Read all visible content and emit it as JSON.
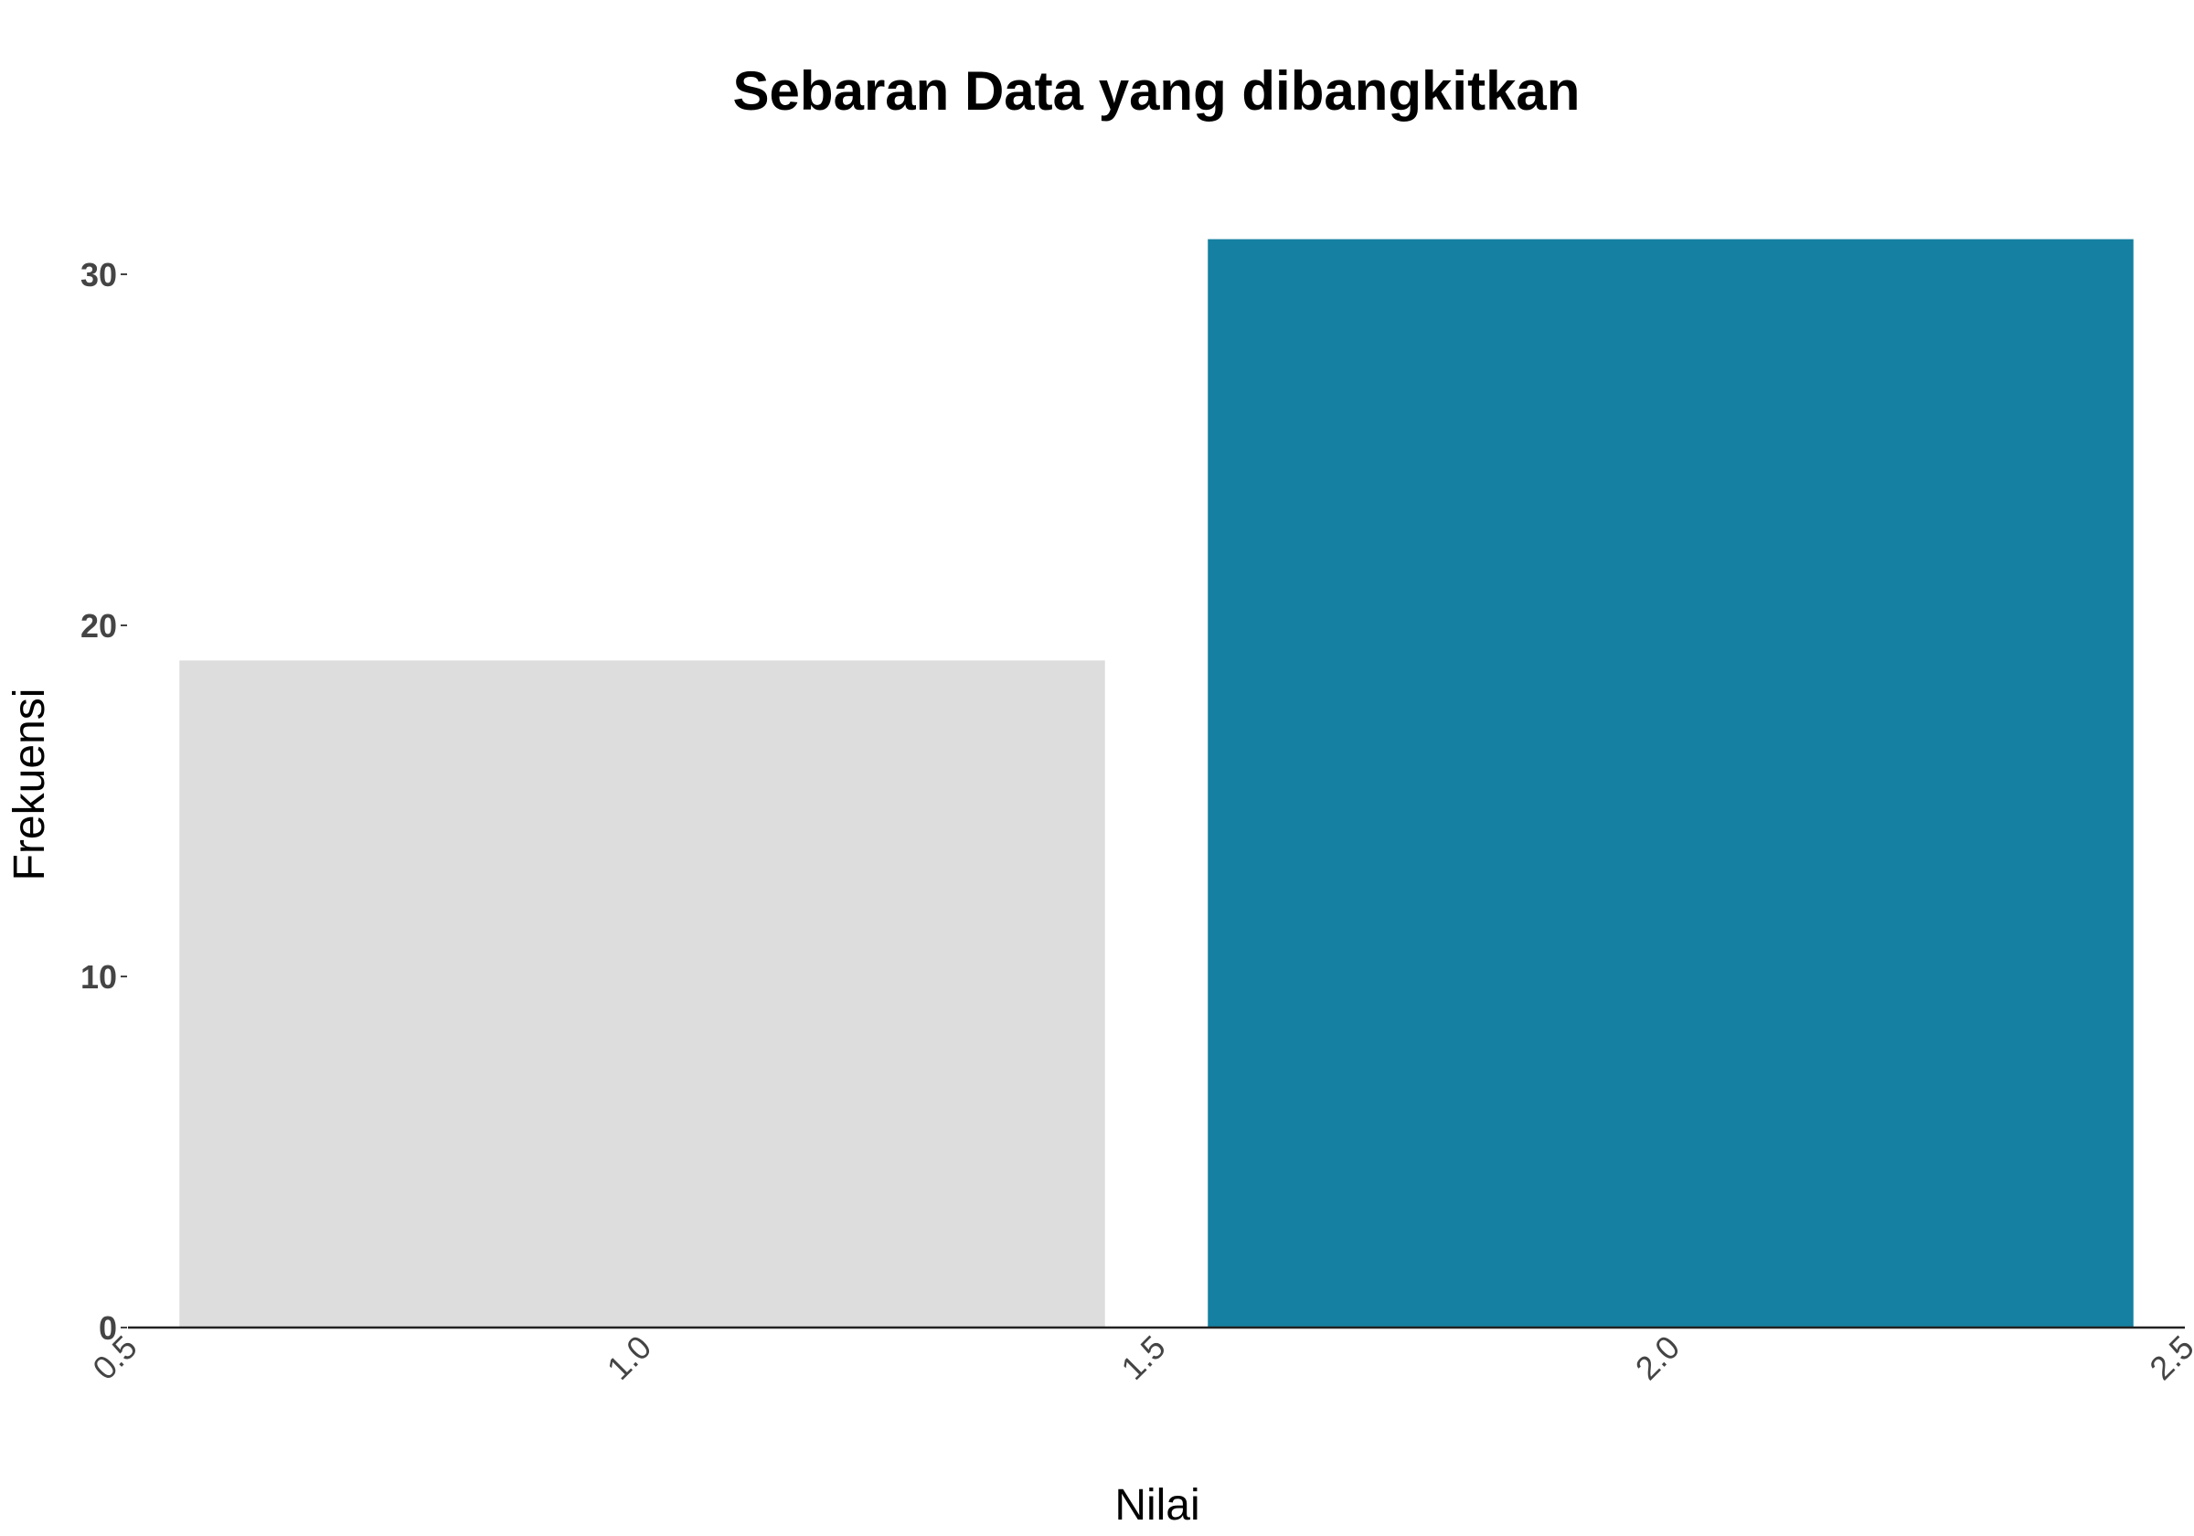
{
  "chart_data": {
    "type": "bar",
    "title": "Sebaran Data yang dibangkitkan",
    "xlabel": "Nilai",
    "ylabel": "Frekuensi",
    "bins": [
      {
        "x_start": 0.55,
        "x_end": 1.45,
        "value": 19,
        "color": "#DDDDDD"
      },
      {
        "x_start": 1.55,
        "x_end": 2.45,
        "value": 31,
        "color": "#1580A1"
      }
    ],
    "xlim": [
      0.5,
      2.5
    ],
    "ylim": [
      0,
      32
    ],
    "x_ticks": [
      "0.5",
      "1.0",
      "1.5",
      "2.0",
      "2.5"
    ],
    "y_ticks": [
      "0",
      "10",
      "20",
      "30"
    ],
    "grid": false,
    "legend": "none"
  }
}
